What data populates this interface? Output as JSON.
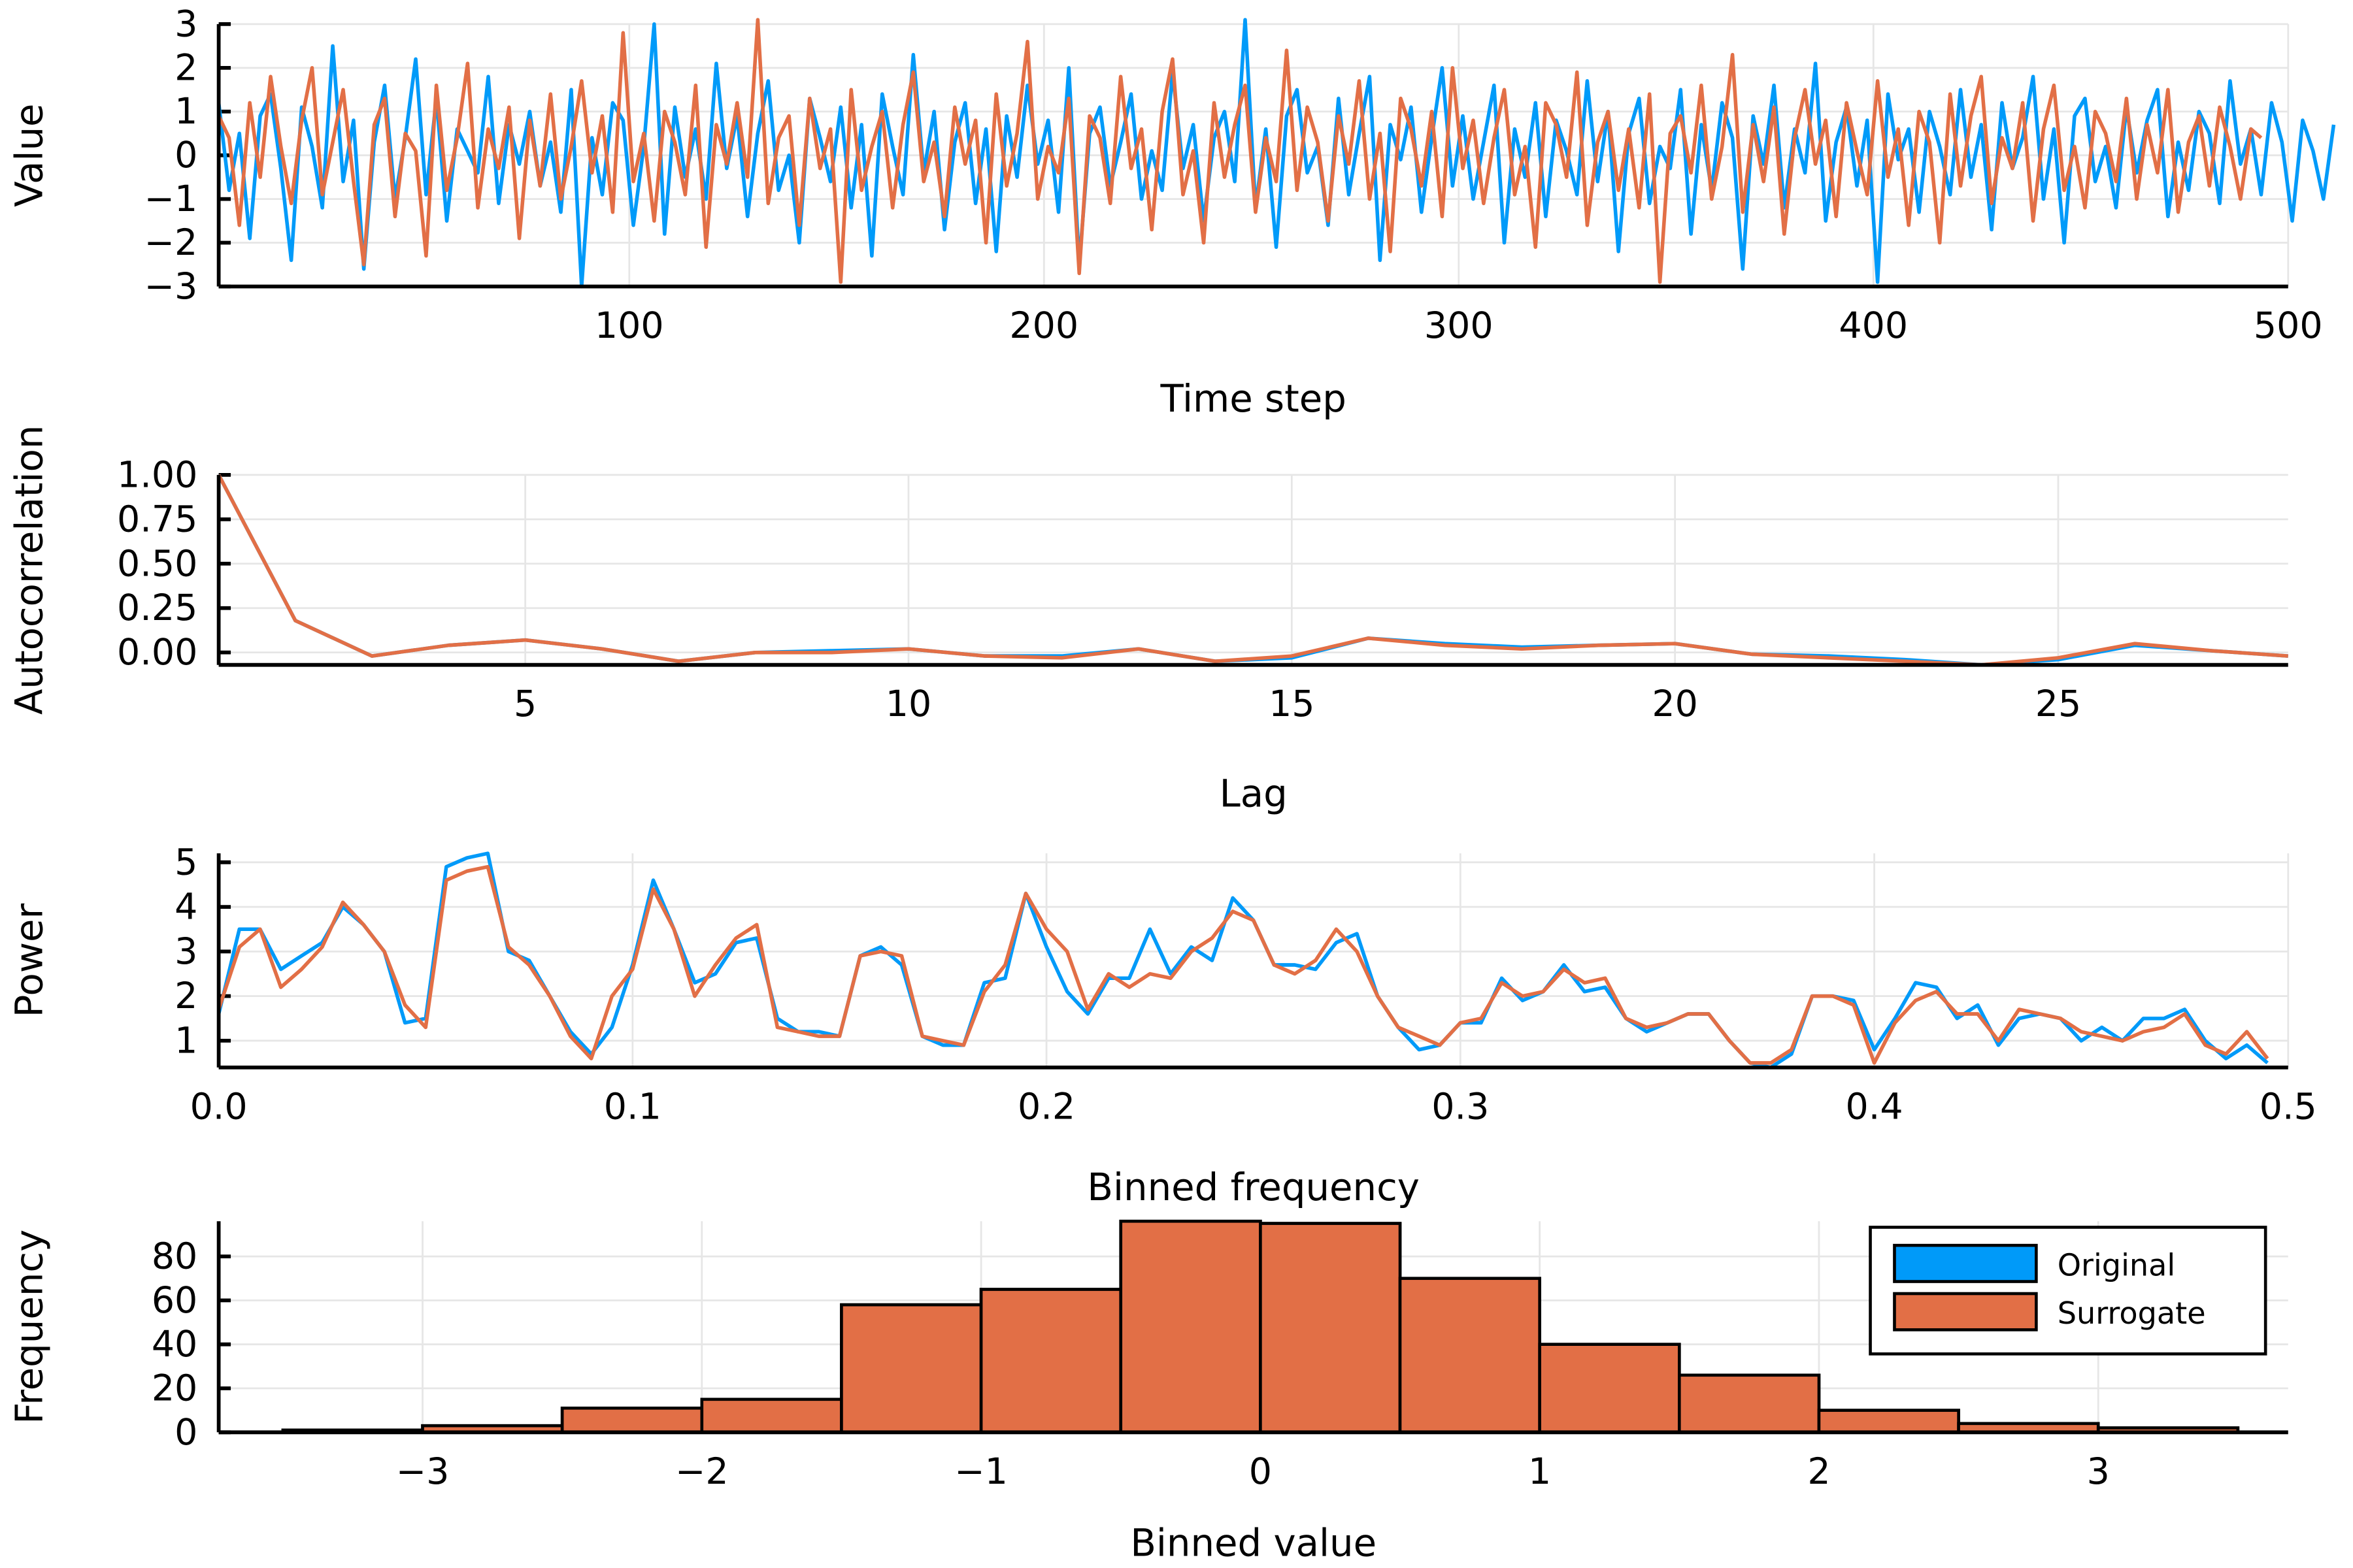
{
  "chart_data": [
    {
      "type": "line",
      "xlabel": "Time step",
      "ylabel": "Value",
      "xlim": [
        1,
        500
      ],
      "ylim": [
        -3,
        3
      ],
      "xticks": [
        "100",
        "200",
        "300",
        "400",
        "500"
      ],
      "yticks": [
        "3",
        "2",
        "1",
        "0",
        "−1",
        "−2",
        "−3"
      ],
      "series": [
        {
          "name": "Original",
          "color": "#009AF9",
          "x_step": 2.5,
          "values": [
            1.2,
            -0.8,
            0.5,
            -1.9,
            0.9,
            1.4,
            -0.3,
            -2.4,
            1.1,
            0.2,
            -1.2,
            2.5,
            -0.6,
            0.8,
            -2.6,
            0.3,
            1.6,
            -1.0,
            0.4,
            2.2,
            -0.9,
            1.3,
            -1.5,
            0.6,
            0.1,
            -0.4,
            1.8,
            -1.1,
            0.7,
            -0.2,
            1.0,
            -0.7,
            0.3,
            -1.3,
            1.5,
            -3.0,
            0.4,
            -0.9,
            1.2,
            0.8,
            -1.6,
            0.2,
            3.0,
            -1.8,
            1.1,
            -0.5,
            0.6,
            -1.0,
            2.1,
            -0.3,
            0.9,
            -1.4,
            0.5,
            1.7,
            -0.8,
            0.0,
            -2.0,
            1.3,
            0.4,
            -0.6,
            1.1,
            -1.2,
            0.7,
            -2.3,
            1.4,
            0.2,
            -0.9,
            2.3,
            -0.4,
            1.0,
            -1.7,
            0.3,
            1.2,
            -1.1,
            0.6,
            -2.2,
            0.9,
            -0.5,
            1.6,
            -0.2,
            0.8,
            -1.3,
            2.0,
            -2.5,
            0.5,
            1.1,
            -0.7,
            0.3,
            1.4,
            -1.0,
            0.1,
            -0.8,
            1.9,
            -0.3,
            0.7,
            -1.5,
            0.4,
            1.0,
            -0.6,
            3.1,
            -1.2,
            0.6,
            -2.1,
            0.9,
            1.5,
            -0.4,
            0.2,
            -1.6,
            1.3,
            -0.9,
            0.5,
            1.8,
            -2.4,
            0.7,
            -0.1,
            1.1,
            -1.3,
            0.4,
            2.0,
            -0.7,
            0.9,
            -1.0,
            0.3,
            1.6,
            -2.0,
            0.6,
            -0.5,
            1.2,
            -1.4,
            0.8,
            0.1,
            -0.9,
            1.7,
            -0.6,
            1.0,
            -2.2,
            0.5,
            1.3,
            -1.1,
            0.2,
            -0.3,
            1.5,
            -1.8,
            0.7,
            -0.8,
            1.2,
            0.4,
            -2.6,
            0.9,
            -0.2,
            1.6,
            -1.2,
            0.6,
            -0.4,
            2.1,
            -1.5,
            0.3,
            1.1,
            -0.7,
            0.8,
            -2.9,
            1.4,
            -0.1,
            0.6,
            -1.3,
            1.0,
            0.2,
            -0.9,
            1.5,
            -0.5,
            0.7,
            -1.7,
            1.2,
            -0.3,
            0.4,
            1.8,
            -1.0,
            0.6,
            -2.0,
            0.9,
            1.3,
            -0.6,
            0.2,
            -1.2,
            1.1,
            -0.4,
            0.8,
            1.5,
            -1.4,
            0.3,
            -0.8,
            1.0,
            0.5,
            -1.1,
            1.7,
            -0.2,
            0.6,
            -0.9,
            1.2,
            0.3,
            -1.5,
            0.8,
            0.1,
            -1.0,
            0.7
          ]
        },
        {
          "name": "Surrogate",
          "color": "#E26F46",
          "x_step": 2.5,
          "values": [
            0.9,
            0.4,
            -1.6,
            1.2,
            -0.5,
            1.8,
            0.2,
            -1.1,
            0.8,
            2.0,
            -0.9,
            0.3,
            1.5,
            -0.6,
            -2.5,
            0.7,
            1.3,
            -1.4,
            0.5,
            0.1,
            -2.3,
            1.6,
            -0.8,
            0.4,
            2.1,
            -1.2,
            0.6,
            -0.3,
            1.1,
            -1.9,
            0.8,
            -0.7,
            1.4,
            -1.0,
            0.2,
            1.7,
            -0.4,
            0.9,
            -1.3,
            2.8,
            -0.6,
            0.5,
            -1.5,
            1.0,
            0.3,
            -0.9,
            1.6,
            -2.1,
            0.7,
            -0.2,
            1.2,
            -0.5,
            3.1,
            -1.1,
            0.4,
            0.9,
            -1.6,
            1.3,
            -0.3,
            0.6,
            -2.9,
            1.5,
            -0.8,
            0.2,
            1.0,
            -1.2,
            0.7,
            1.9,
            -0.6,
            0.3,
            -1.4,
            1.1,
            -0.2,
            0.8,
            -2.0,
            1.4,
            -0.7,
            0.5,
            2.6,
            -1.0,
            0.2,
            -0.4,
            1.3,
            -2.7,
            0.9,
            0.4,
            -1.1,
            1.8,
            -0.3,
            0.6,
            -1.7,
            1.0,
            2.2,
            -0.9,
            0.1,
            -2.0,
            1.2,
            -0.5,
            0.7,
            1.6,
            -1.3,
            0.4,
            -0.6,
            2.4,
            -0.8,
            1.1,
            0.3,
            -1.5,
            0.9,
            -0.2,
            1.7,
            -1.0,
            0.5,
            -2.2,
            1.3,
            0.6,
            -0.7,
            1.0,
            -1.4,
            2.0,
            -0.3,
            0.8,
            -1.1,
            0.4,
            1.5,
            -0.9,
            0.2,
            -2.1,
            1.2,
            0.7,
            -0.5,
            1.9,
            -1.6,
            0.3,
            1.0,
            -0.8,
            0.6,
            -1.2,
            1.4,
            -2.9,
            0.5,
            0.9,
            -0.4,
            1.6,
            -1.0,
            0.2,
            2.3,
            -1.3,
            0.7,
            -0.6,
            1.1,
            -1.8,
            0.4,
            1.5,
            -0.2,
            0.8,
            -1.4,
            1.2,
            0.1,
            -0.9,
            1.7,
            -0.5,
            0.6,
            -1.6,
            1.0,
            0.3,
            -2.0,
            1.4,
            -0.7,
            0.9,
            1.8,
            -1.1,
            0.4,
            -0.3,
            1.2,
            -1.5,
            0.6,
            1.6,
            -0.8,
            0.2,
            -1.2,
            1.0,
            0.5,
            -0.6,
            1.3,
            -1.0,
            0.7,
            -0.4,
            1.5,
            -1.3,
            0.3,
            0.9,
            -0.7,
            1.1,
            0.2,
            -1.0,
            0.6,
            0.4
          ]
        }
      ]
    },
    {
      "type": "line",
      "xlabel": "Lag",
      "ylabel": "Autocorrelation",
      "xlim": [
        1,
        28
      ],
      "ylim": [
        -0.07,
        1.0
      ],
      "xticks": [
        "5",
        "10",
        "15",
        "20",
        "25"
      ],
      "yticks": [
        "1.00",
        "0.75",
        "0.50",
        "0.25",
        "0.00"
      ],
      "x": [
        1,
        2,
        3,
        4,
        5,
        6,
        7,
        8,
        9,
        10,
        11,
        12,
        13,
        14,
        15,
        16,
        17,
        18,
        19,
        20,
        21,
        22,
        23,
        24,
        25,
        26,
        27,
        28
      ],
      "series": [
        {
          "name": "Original",
          "color": "#009AF9",
          "values": [
            1.0,
            0.18,
            -0.02,
            0.04,
            0.07,
            0.02,
            -0.05,
            0.0,
            0.01,
            0.02,
            -0.02,
            -0.02,
            0.02,
            -0.05,
            -0.03,
            0.08,
            0.05,
            0.03,
            0.04,
            0.05,
            -0.01,
            -0.02,
            -0.04,
            -0.07,
            -0.04,
            0.04,
            0.01,
            -0.02
          ]
        },
        {
          "name": "Surrogate",
          "color": "#E26F46",
          "values": [
            1.0,
            0.18,
            -0.02,
            0.04,
            0.07,
            0.02,
            -0.05,
            0.0,
            0.0,
            0.02,
            -0.02,
            -0.03,
            0.02,
            -0.05,
            -0.02,
            0.08,
            0.04,
            0.02,
            0.04,
            0.05,
            -0.01,
            -0.03,
            -0.05,
            -0.07,
            -0.03,
            0.05,
            0.01,
            -0.02
          ]
        }
      ]
    },
    {
      "type": "line",
      "xlabel": "Binned frequency",
      "ylabel": "Power",
      "xlim": [
        0,
        0.5
      ],
      "ylim": [
        0.4,
        5.2
      ],
      "xticks": [
        "0.0",
        "0.1",
        "0.2",
        "0.3",
        "0.4",
        "0.5"
      ],
      "yticks": [
        "5",
        "4",
        "3",
        "2",
        "1"
      ],
      "x_step": 0.005,
      "series": [
        {
          "name": "Original",
          "color": "#009AF9",
          "values": [
            1.6,
            3.5,
            3.5,
            2.6,
            2.9,
            3.2,
            4.0,
            3.6,
            3.0,
            1.4,
            1.5,
            4.9,
            5.1,
            5.2,
            3.0,
            2.8,
            2.0,
            1.2,
            0.7,
            1.3,
            2.7,
            4.6,
            3.5,
            2.3,
            2.5,
            3.2,
            3.3,
            1.5,
            1.2,
            1.2,
            1.1,
            2.9,
            3.1,
            2.7,
            1.1,
            0.9,
            0.9,
            2.3,
            2.4,
            4.3,
            3.1,
            2.1,
            1.6,
            2.4,
            2.4,
            3.5,
            2.5,
            3.1,
            2.8,
            4.2,
            3.7,
            2.7,
            2.7,
            2.6,
            3.2,
            3.4,
            2.0,
            1.3,
            0.8,
            0.9,
            1.4,
            1.4,
            2.4,
            1.9,
            2.1,
            2.7,
            2.1,
            2.2,
            1.5,
            1.2,
            1.4,
            1.6,
            1.6,
            1.0,
            0.5,
            0.4,
            0.7,
            2.0,
            2.0,
            1.9,
            0.8,
            1.5,
            2.3,
            2.2,
            1.5,
            1.8,
            0.9,
            1.5,
            1.6,
            1.5,
            1.0,
            1.3,
            1.0,
            1.5,
            1.5,
            1.7,
            1.0,
            0.6,
            0.9,
            0.5
          ]
        },
        {
          "name": "Surrogate",
          "color": "#E26F46",
          "values": [
            1.7,
            3.1,
            3.5,
            2.2,
            2.6,
            3.1,
            4.1,
            3.6,
            3.0,
            1.8,
            1.3,
            4.6,
            4.8,
            4.9,
            3.1,
            2.7,
            2.0,
            1.1,
            0.6,
            2.0,
            2.6,
            4.4,
            3.5,
            2.0,
            2.7,
            3.3,
            3.6,
            1.3,
            1.2,
            1.1,
            1.1,
            2.9,
            3.0,
            2.9,
            1.1,
            1.0,
            0.9,
            2.1,
            2.7,
            4.3,
            3.5,
            3.0,
            1.7,
            2.5,
            2.2,
            2.5,
            2.4,
            3.0,
            3.3,
            3.9,
            3.7,
            2.7,
            2.5,
            2.8,
            3.5,
            3.0,
            2.0,
            1.3,
            1.1,
            0.9,
            1.4,
            1.5,
            2.3,
            2.0,
            2.1,
            2.6,
            2.3,
            2.4,
            1.5,
            1.3,
            1.4,
            1.6,
            1.6,
            1.0,
            0.5,
            0.5,
            0.8,
            2.0,
            2.0,
            1.8,
            0.5,
            1.4,
            1.9,
            2.1,
            1.6,
            1.6,
            1.0,
            1.7,
            1.6,
            1.5,
            1.2,
            1.1,
            1.0,
            1.2,
            1.3,
            1.6,
            0.9,
            0.7,
            1.2,
            0.6
          ]
        }
      ]
    },
    {
      "type": "bar",
      "xlabel": "Binned value",
      "ylabel": "Frequency",
      "xlim": [
        -3.73,
        3.68
      ],
      "ylim": [
        0,
        96
      ],
      "xticks": [
        "−3",
        "−2",
        "−1",
        "0",
        "1",
        "2",
        "3"
      ],
      "yticks": [
        "80",
        "60",
        "40",
        "20",
        "0"
      ],
      "bin_edges": [
        -3.5,
        -3.0,
        -2.5,
        -2.0,
        -1.5,
        -1.0,
        -0.5,
        0.0,
        0.5,
        1.0,
        1.5,
        2.0,
        2.5,
        3.0,
        3.5
      ],
      "series": [
        {
          "name": "Original",
          "color": "#009AF9",
          "values": [
            1,
            3,
            11,
            15,
            58,
            65,
            96,
            95,
            70,
            40,
            26,
            10,
            4,
            2
          ]
        },
        {
          "name": "Surrogate",
          "color": "#E26F46",
          "values": [
            1,
            3,
            11,
            15,
            58,
            65,
            96,
            95,
            70,
            40,
            26,
            10,
            4,
            2
          ]
        }
      ],
      "legend": {
        "position": "bottom-right",
        "entries": [
          "Original",
          "Surrogate"
        ]
      }
    }
  ]
}
